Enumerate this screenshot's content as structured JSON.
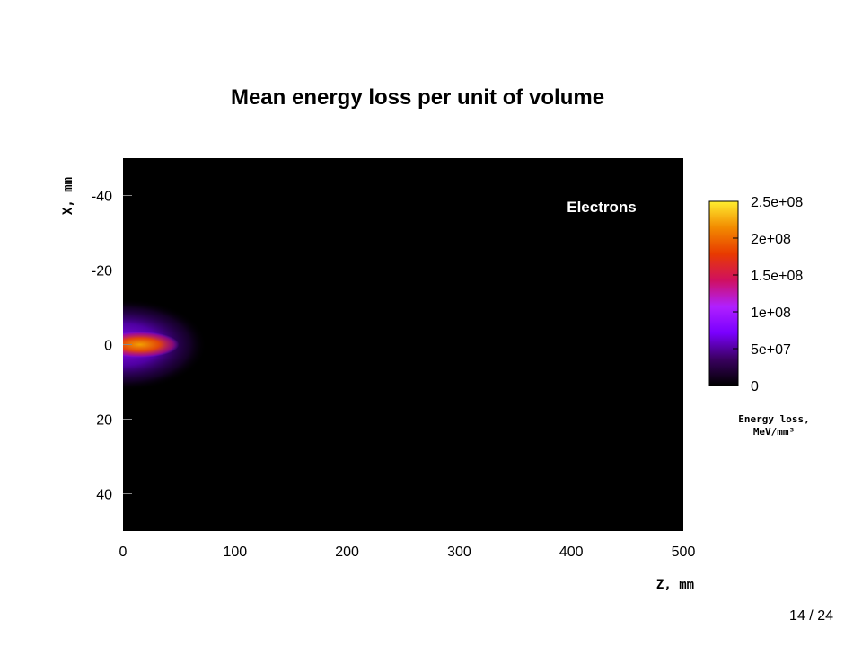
{
  "slide": {
    "page_current": "14",
    "page_separator": "/",
    "page_total": "24"
  },
  "chart_data": {
    "type": "heatmap",
    "title": "Mean energy loss per unit of volume",
    "xlabel": "Z, mm",
    "ylabel": "X, mm",
    "annotation": "Electrons",
    "xlim": [
      0,
      500
    ],
    "ylim": [
      -50,
      50
    ],
    "y_inverted": true,
    "x_ticks": [
      0,
      100,
      200,
      300,
      400,
      500
    ],
    "y_ticks": [
      -40,
      -20,
      0,
      20,
      40
    ],
    "colorbar": {
      "label_line1": "Energy loss,",
      "label_line2": "MeV/mm³",
      "range": [
        0,
        250000000
      ],
      "ticks": [
        {
          "value": 0,
          "label": "0"
        },
        {
          "value": 50000000,
          "label": "5e+07"
        },
        {
          "value": 100000000,
          "label": "1e+08"
        },
        {
          "value": 150000000,
          "label": "1.5e+08"
        },
        {
          "value": 200000000,
          "label": "2e+08"
        },
        {
          "value": 250000000,
          "label": "2.5e+08"
        }
      ],
      "colors": [
        "#000000",
        "#3a0060",
        "#7a00ff",
        "#b020ff",
        "#d01060",
        "#e83a00",
        "#f28a00",
        "#ffee30"
      ]
    },
    "field": {
      "peak_value": 240000000,
      "peak_z": 15,
      "core_length_z": 35,
      "core_width_x": 2.5,
      "halo_length_z": 75,
      "halo_width_x": 8
    }
  }
}
